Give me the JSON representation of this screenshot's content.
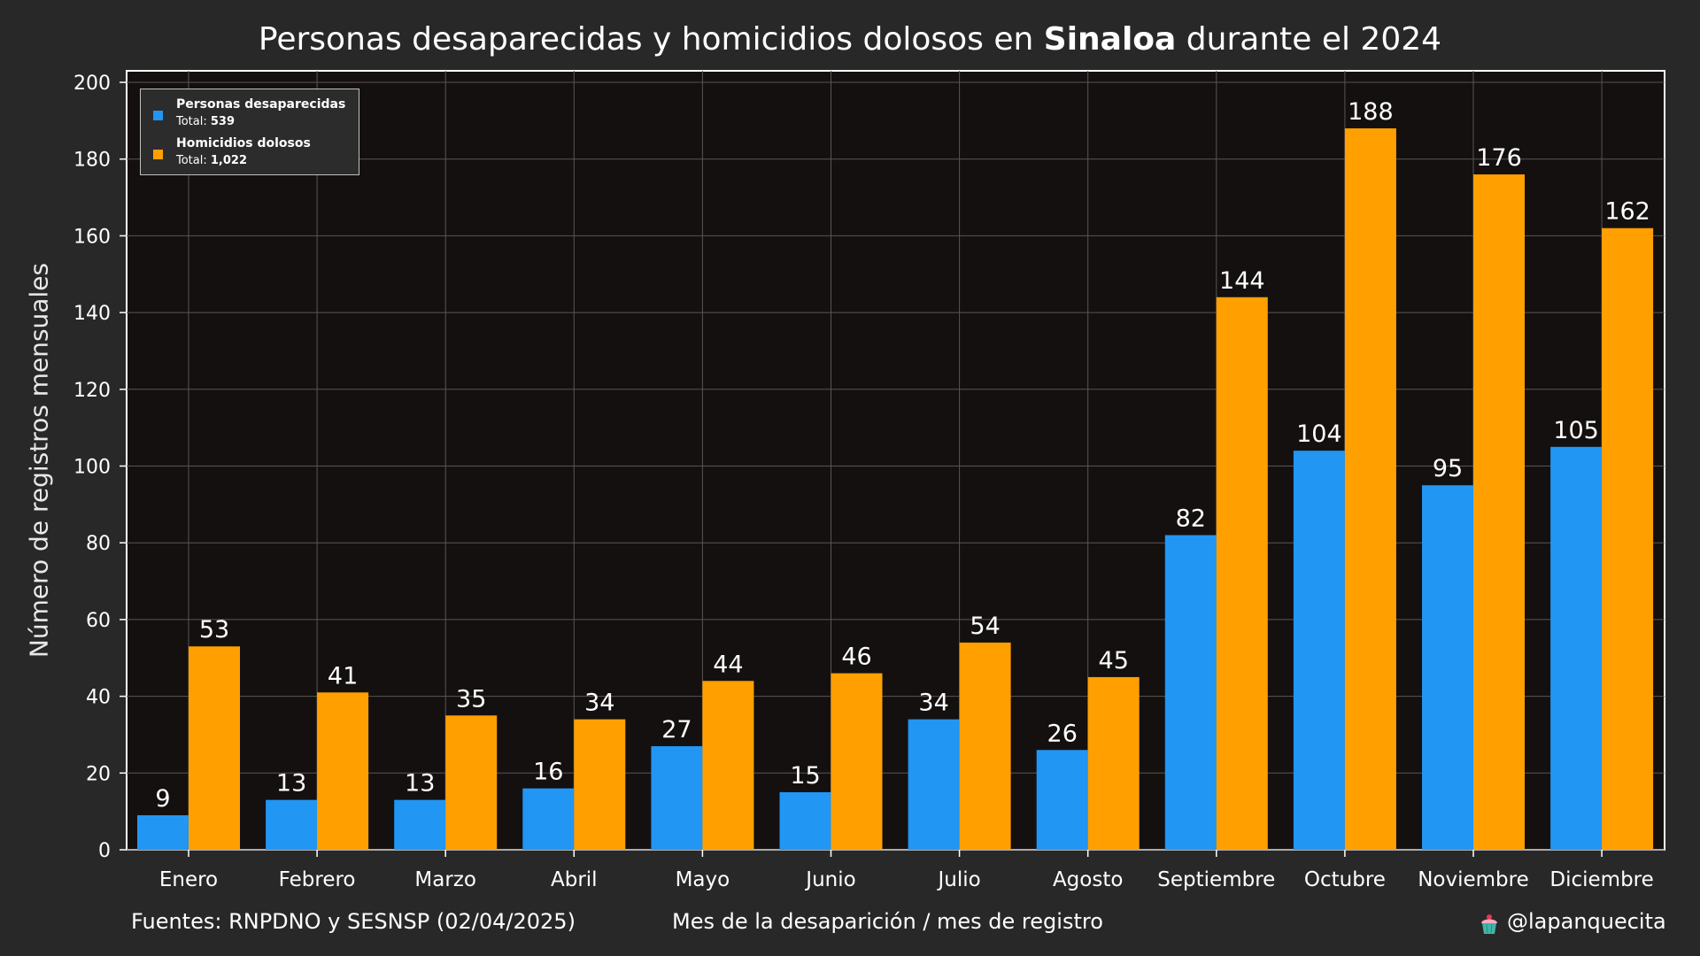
{
  "title": {
    "prefix": "Personas desaparecidas y homicidios dolosos en ",
    "bold": "Sinaloa",
    "suffix": " durante el 2024"
  },
  "footer": {
    "sources": "Fuentes: RNPDNO y SESNSP (02/04/2025)",
    "xlabel": "Mes de la desaparición / mes de registro",
    "credit": "@lapanquecita",
    "credit_icon": "cupcake-icon"
  },
  "legend": {
    "placement": "top-left",
    "entries": [
      {
        "name": "Personas desaparecidas",
        "total_label": "Total: ",
        "total_value": "539"
      },
      {
        "name": "Homicidios dolosos",
        "total_label": "Total: ",
        "total_value": "1,022"
      }
    ]
  },
  "colors": {
    "page_background": "#282828",
    "plot_background": "#141010",
    "series_1": "#2196f3",
    "series_2": "#ffa000",
    "grid": "#5a5555",
    "text": "#ffffff"
  },
  "chart_data": {
    "type": "bar",
    "title": "Personas desaparecidas y homicidios dolosos en Sinaloa durante el 2024",
    "xlabel": "Mes de la desaparición / mes de registro",
    "ylabel": "Número de registros mensuales",
    "ylim": [
      0,
      200
    ],
    "yticks": [
      0,
      20,
      40,
      60,
      80,
      100,
      120,
      140,
      160,
      180,
      200
    ],
    "grid": true,
    "legend_position": "top-left",
    "categories": [
      "Enero",
      "Febrero",
      "Marzo",
      "Abril",
      "Mayo",
      "Junio",
      "Julio",
      "Agosto",
      "Septiembre",
      "Octubre",
      "Noviembre",
      "Diciembre"
    ],
    "series": [
      {
        "name": "Personas desaparecidas",
        "color": "#2196f3",
        "values": [
          9,
          13,
          13,
          16,
          27,
          15,
          34,
          26,
          82,
          104,
          95,
          105
        ]
      },
      {
        "name": "Homicidios dolosos",
        "color": "#ffa000",
        "values": [
          53,
          41,
          35,
          34,
          44,
          46,
          54,
          45,
          144,
          188,
          176,
          162
        ]
      }
    ]
  }
}
